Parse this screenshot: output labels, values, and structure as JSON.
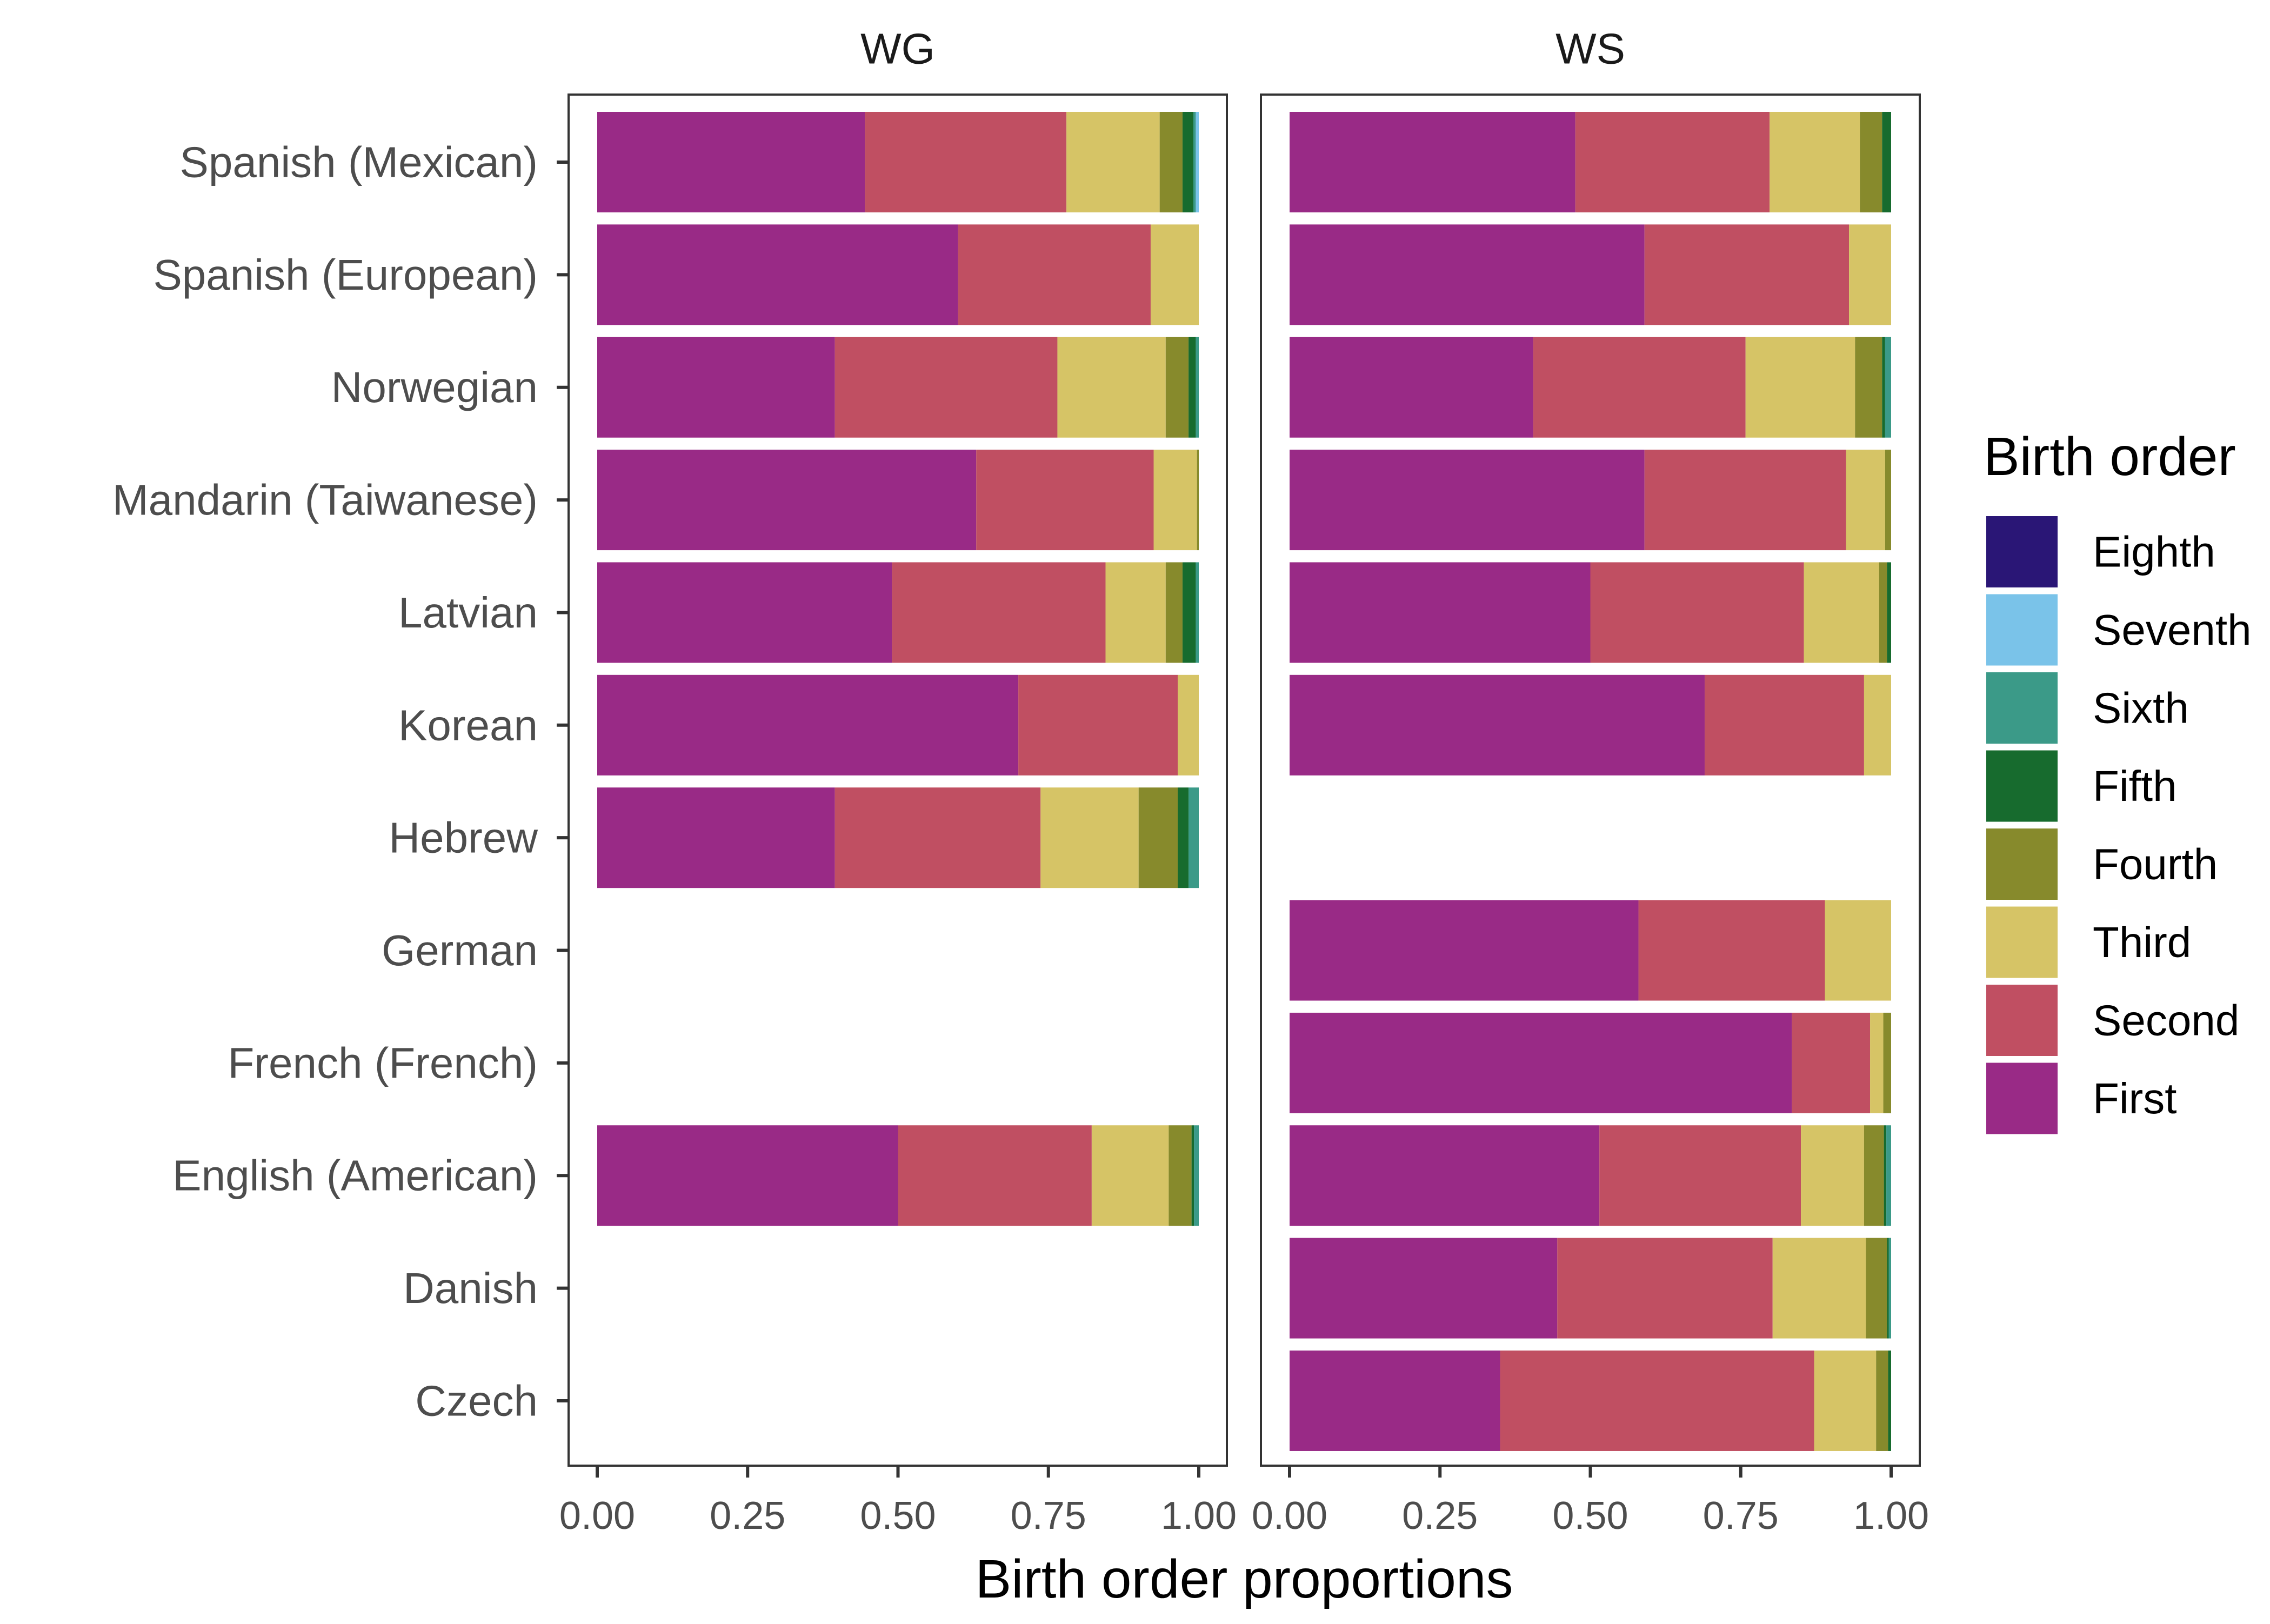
{
  "chart_data": {
    "type": "bar",
    "orientation": "horizontal",
    "stacked": true,
    "xlabel": "Birth order proportions",
    "ylabel": "",
    "xlim": [
      0,
      1
    ],
    "x_ticks": [
      "0.00",
      "0.25",
      "0.50",
      "0.75",
      "1.00"
    ],
    "x_tick_values": [
      0,
      0.25,
      0.5,
      0.75,
      1
    ],
    "categories": [
      "Spanish (Mexican)",
      "Spanish (European)",
      "Norwegian",
      "Mandarin (Taiwanese)",
      "Latvian",
      "Korean",
      "Hebrew",
      "German",
      "French (French)",
      "English (American)",
      "Danish",
      "Czech"
    ],
    "legend": {
      "title": "Birth order",
      "position": "right",
      "items": [
        "Eighth",
        "Seventh",
        "Sixth",
        "Fifth",
        "Fourth",
        "Third",
        "Second",
        "First"
      ]
    },
    "colors": {
      "First": "#992A86",
      "Second": "#C04F62",
      "Third": "#D6C466",
      "Fourth": "#878A2C",
      "Fifth": "#176B2E",
      "Sixth": "#3B9A88",
      "Seventh": "#7AC3E9",
      "Eighth": "#2A1676"
    },
    "stack_order": [
      "First",
      "Second",
      "Third",
      "Fourth",
      "Fifth",
      "Sixth",
      "Seventh",
      "Eighth"
    ],
    "panels": [
      {
        "name": "WG",
        "rows": {
          "Spanish (Mexican)": [
            0.445,
            0.335,
            0.155,
            0.038,
            0.018,
            0.004,
            0.005,
            0.0
          ],
          "Spanish (European)": [
            0.6,
            0.32,
            0.08,
            0,
            0,
            0,
            0,
            0
          ],
          "Norwegian": [
            0.395,
            0.37,
            0.18,
            0.038,
            0.012,
            0.005,
            0,
            0
          ],
          "Mandarin (Taiwanese)": [
            0.63,
            0.295,
            0.072,
            0.003,
            0,
            0,
            0,
            0
          ],
          "Latvian": [
            0.49,
            0.355,
            0.1,
            0.028,
            0.022,
            0.005,
            0,
            0
          ],
          "Korean": [
            0.7,
            0.265,
            0.035,
            0,
            0,
            0,
            0,
            0
          ],
          "Hebrew": [
            0.395,
            0.342,
            0.163,
            0.065,
            0.018,
            0.017,
            0,
            0
          ],
          "German": null,
          "French (French)": null,
          "English (American)": [
            0.5,
            0.322,
            0.128,
            0.038,
            0.004,
            0.008,
            0,
            0
          ],
          "Danish": null,
          "Czech": null
        }
      },
      {
        "name": "WS",
        "rows": {
          "Spanish (Mexican)": [
            0.475,
            0.323,
            0.15,
            0.037,
            0.015,
            0,
            0,
            0
          ],
          "Spanish (European)": [
            0.59,
            0.34,
            0.07,
            0,
            0,
            0,
            0,
            0
          ],
          "Norwegian": [
            0.405,
            0.353,
            0.182,
            0.045,
            0.005,
            0.01,
            0,
            0
          ],
          "Mandarin (Taiwanese)": [
            0.59,
            0.335,
            0.065,
            0.01,
            0,
            0,
            0,
            0
          ],
          "Latvian": [
            0.5,
            0.355,
            0.125,
            0.013,
            0.007,
            0,
            0,
            0
          ],
          "Korean": [
            0.69,
            0.265,
            0.045,
            0,
            0,
            0,
            0,
            0
          ],
          "Hebrew": null,
          "German": [
            0.58,
            0.31,
            0.11,
            0,
            0,
            0,
            0,
            0
          ],
          "French (French)": [
            0.835,
            0.13,
            0.022,
            0.013,
            0,
            0,
            0,
            0
          ],
          "English (American)": [
            0.515,
            0.335,
            0.105,
            0.033,
            0.004,
            0.008,
            0,
            0
          ],
          "Danish": [
            0.445,
            0.358,
            0.155,
            0.035,
            0.003,
            0.004,
            0,
            0
          ],
          "Czech": [
            0.35,
            0.522,
            0.103,
            0.02,
            0.005,
            0,
            0,
            0
          ]
        }
      }
    ]
  }
}
